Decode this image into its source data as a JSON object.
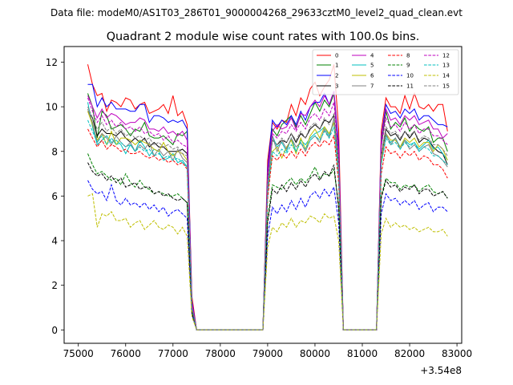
{
  "figure": {
    "suptitle": "Data file: modeM0/AS1T03_286T01_9000004268_29633cztM0_level2_quad_clean.evt",
    "offset_label": "+3.54e8"
  },
  "chart_data": {
    "type": "line",
    "title": "Quadrant 2 module wise count rates with 100.0s bins.",
    "xlabel": "",
    "ylabel": "",
    "xlim": [
      74700,
      83100
    ],
    "ylim": [
      -0.6,
      12.7
    ],
    "x_offset": 354000000,
    "x_ticks": [
      75000,
      76000,
      77000,
      78000,
      79000,
      80000,
      81000,
      82000,
      83000
    ],
    "x_tick_labels": [
      "75000",
      "76000",
      "77000",
      "78000",
      "79000",
      "80000",
      "81000",
      "82000",
      "83000"
    ],
    "y_ticks": [
      0,
      2,
      4,
      6,
      8,
      10,
      12
    ],
    "y_tick_labels": [
      "0",
      "2",
      "4",
      "6",
      "8",
      "10",
      "12"
    ],
    "grid": false,
    "legend_position": "top-right",
    "x": [
      75200,
      75300,
      75400,
      75500,
      75600,
      75700,
      75800,
      75900,
      76000,
      76100,
      76200,
      76300,
      76400,
      76500,
      76600,
      76700,
      76800,
      76900,
      77000,
      77100,
      77200,
      77300,
      77400,
      77500,
      78900,
      79000,
      79100,
      79200,
      79300,
      79400,
      79500,
      79600,
      79700,
      79800,
      79900,
      80000,
      80100,
      80200,
      80300,
      80400,
      80500,
      80600,
      81300,
      81400,
      81500,
      81600,
      81700,
      81800,
      81900,
      82000,
      82100,
      82200,
      82300,
      82400,
      82500,
      82600,
      82700,
      82800
    ],
    "series": [
      {
        "name": "0",
        "color": "#ff0000",
        "dashed": false,
        "values": [
          11.9,
          11.0,
          10.5,
          10.6,
          9.8,
          10.3,
          10.2,
          10.0,
          10.4,
          10.3,
          9.9,
          10.1,
          10.2,
          9.7,
          9.8,
          9.9,
          10.1,
          9.7,
          10.5,
          9.6,
          9.8,
          9.2,
          1.5,
          0,
          0,
          7.6,
          9.3,
          9.0,
          9.4,
          9.3,
          10.1,
          9.6,
          10.4,
          10.1,
          10.8,
          11.1,
          10.5,
          10.9,
          11.2,
          11.9,
          9.0,
          0,
          0,
          8.9,
          10.4,
          10.0,
          10.0,
          9.7,
          10.5,
          9.9,
          10.6,
          10.0,
          9.9,
          10.1,
          9.8,
          10.1,
          10.1,
          8.9
        ]
      },
      {
        "name": "1",
        "color": "#008000",
        "dashed": false,
        "values": [
          10.6,
          10.0,
          8.6,
          9.8,
          9.6,
          9.0,
          9.1,
          9.2,
          9.0,
          8.7,
          9.0,
          8.9,
          9.3,
          8.7,
          8.6,
          8.6,
          8.7,
          8.5,
          8.3,
          8.8,
          8.7,
          8.9,
          1.2,
          0,
          0,
          7.0,
          9.0,
          8.7,
          9.2,
          9.4,
          9.6,
          9.1,
          9.6,
          9.2,
          9.7,
          10.2,
          9.8,
          10.3,
          10.0,
          10.6,
          7.7,
          0,
          0,
          8.2,
          9.8,
          9.0,
          9.3,
          9.1,
          9.5,
          8.9,
          9.2,
          9.0,
          8.9,
          9.1,
          8.4,
          8.6,
          8.6,
          8.0
        ]
      },
      {
        "name": "2",
        "color": "#0000ff",
        "dashed": false,
        "values": [
          11.0,
          11.0,
          10.0,
          10.4,
          10.0,
          10.2,
          9.9,
          9.9,
          9.9,
          9.8,
          9.8,
          10.1,
          10.1,
          9.3,
          9.6,
          9.6,
          9.5,
          9.3,
          9.4,
          9.3,
          9.4,
          9.0,
          1.3,
          0,
          0,
          7.2,
          9.4,
          9.1,
          9.4,
          9.2,
          9.6,
          9.2,
          9.8,
          9.4,
          10.0,
          10.2,
          10.2,
          10.6,
          10.1,
          10.7,
          8.3,
          0,
          0,
          8.6,
          10.1,
          9.7,
          9.8,
          9.5,
          9.9,
          9.7,
          9.9,
          9.4,
          9.6,
          9.6,
          9.4,
          9.2,
          9.2,
          9.1
        ]
      },
      {
        "name": "3",
        "color": "#000000",
        "dashed": false,
        "values": [
          9.8,
          9.5,
          8.7,
          9.0,
          8.8,
          8.8,
          8.7,
          8.9,
          8.6,
          8.4,
          8.6,
          8.4,
          8.6,
          8.2,
          8.4,
          8.2,
          8.2,
          8.0,
          8.0,
          8.0,
          8.1,
          7.9,
          1.0,
          0,
          0,
          6.6,
          8.5,
          8.3,
          8.5,
          8.4,
          8.8,
          8.4,
          8.8,
          8.6,
          9.0,
          9.2,
          9.0,
          9.4,
          9.3,
          9.6,
          7.3,
          0,
          0,
          7.8,
          9.0,
          8.7,
          8.8,
          8.5,
          8.9,
          8.6,
          8.9,
          8.4,
          8.6,
          8.5,
          8.2,
          8.0,
          7.9,
          7.4
        ]
      },
      {
        "name": "4",
        "color": "#bf00bf",
        "dashed": false,
        "values": [
          10.5,
          10.0,
          9.5,
          9.9,
          9.5,
          9.7,
          9.6,
          9.4,
          9.2,
          9.3,
          9.3,
          9.5,
          9.4,
          9.0,
          9.0,
          8.9,
          9.1,
          8.8,
          8.9,
          8.7,
          8.9,
          8.5,
          1.2,
          0,
          0,
          7.0,
          8.9,
          9.2,
          9.0,
          9.1,
          9.5,
          9.0,
          9.7,
          9.6,
          10.0,
          10.3,
          10.0,
          10.5,
          10.1,
          10.7,
          8.0,
          0,
          0,
          8.5,
          9.9,
          9.4,
          9.5,
          9.2,
          9.6,
          9.4,
          9.6,
          9.2,
          9.3,
          9.4,
          9.0,
          9.0,
          8.6,
          8.8
        ]
      },
      {
        "name": "5",
        "color": "#00bfbf",
        "dashed": false,
        "values": [
          10.2,
          9.1,
          8.3,
          8.5,
          8.7,
          8.4,
          8.5,
          8.3,
          7.9,
          8.3,
          8.0,
          8.5,
          8.2,
          7.8,
          8.1,
          8.0,
          7.6,
          7.7,
          7.9,
          7.5,
          7.6,
          7.3,
          0.9,
          0,
          0,
          6.2,
          8.7,
          8.2,
          8.4,
          8.0,
          8.6,
          8.0,
          8.5,
          8.3,
          8.6,
          8.8,
          8.9,
          9.1,
          8.7,
          9.3,
          6.9,
          0,
          0,
          7.5,
          8.7,
          8.4,
          8.6,
          8.2,
          8.5,
          8.3,
          8.4,
          8.1,
          8.3,
          8.5,
          8.1,
          8.2,
          7.9,
          7.6
        ]
      },
      {
        "name": "6",
        "color": "#bfbf00",
        "dashed": false,
        "values": [
          9.8,
          9.2,
          8.5,
          8.8,
          8.3,
          8.9,
          8.3,
          8.6,
          8.6,
          8.5,
          8.3,
          8.5,
          8.4,
          8.3,
          8.1,
          8.0,
          8.4,
          8.0,
          7.8,
          8.0,
          7.9,
          7.6,
          1.0,
          0,
          0,
          6.1,
          8.0,
          8.2,
          7.7,
          8.2,
          8.5,
          7.9,
          8.6,
          8.1,
          8.7,
          9.0,
          8.6,
          9.1,
          8.8,
          9.3,
          6.9,
          0,
          0,
          7.6,
          8.8,
          8.5,
          8.5,
          8.2,
          8.6,
          8.4,
          8.6,
          8.2,
          8.4,
          8.4,
          8.0,
          8.3,
          8.1,
          7.6
        ]
      },
      {
        "name": "7",
        "color": "#808080",
        "dashed": false,
        "values": [
          9.9,
          9.3,
          8.4,
          8.8,
          8.6,
          8.3,
          8.7,
          8.4,
          8.2,
          8.4,
          8.0,
          8.3,
          8.1,
          8.4,
          7.8,
          8.1,
          7.8,
          8.0,
          7.6,
          8.1,
          7.7,
          7.5,
          1.0,
          0,
          0,
          6.2,
          8.7,
          8.0,
          8.5,
          8.1,
          8.6,
          8.2,
          8.4,
          8.0,
          8.5,
          8.7,
          8.4,
          9.0,
          8.6,
          9.5,
          7.1,
          0,
          0,
          7.4,
          8.8,
          8.3,
          8.6,
          8.1,
          8.5,
          8.1,
          8.3,
          8.0,
          8.2,
          8.3,
          7.9,
          7.8,
          7.6,
          7.3
        ]
      },
      {
        "name": "8",
        "color": "#ff0000",
        "dashed": true,
        "values": [
          9.0,
          8.6,
          8.2,
          8.5,
          8.1,
          8.3,
          8.2,
          8.0,
          8.1,
          7.9,
          7.9,
          8.0,
          7.8,
          7.7,
          7.8,
          7.6,
          7.7,
          7.5,
          7.6,
          7.4,
          7.5,
          7.2,
          0.9,
          0,
          0,
          5.9,
          7.8,
          7.6,
          7.9,
          7.7,
          8.0,
          7.7,
          8.1,
          7.8,
          8.2,
          8.4,
          8.2,
          8.5,
          8.3,
          8.7,
          6.6,
          0,
          0,
          7.0,
          8.2,
          7.9,
          8.0,
          7.7,
          8.0,
          7.8,
          8.0,
          7.6,
          7.8,
          7.7,
          7.4,
          7.4,
          7.2,
          6.8
        ]
      },
      {
        "name": "9",
        "color": "#008000",
        "dashed": true,
        "values": [
          7.9,
          7.4,
          7.0,
          7.1,
          6.9,
          6.7,
          6.8,
          6.5,
          7.0,
          6.6,
          6.4,
          6.7,
          6.4,
          6.3,
          6.1,
          6.2,
          6.1,
          6.0,
          6.0,
          6.1,
          5.9,
          5.7,
          0.8,
          0,
          0,
          5.0,
          6.5,
          6.4,
          6.3,
          6.6,
          6.8,
          6.5,
          6.8,
          6.6,
          6.9,
          7.3,
          6.8,
          7.0,
          6.9,
          7.2,
          5.6,
          0,
          0,
          6.0,
          6.8,
          6.6,
          6.6,
          6.3,
          6.5,
          6.4,
          6.5,
          6.2,
          6.4,
          6.5,
          6.2,
          6.1,
          6.2,
          5.9
        ]
      },
      {
        "name": "10",
        "color": "#0000ff",
        "dashed": true,
        "values": [
          6.7,
          6.3,
          6.1,
          6.2,
          5.8,
          6.5,
          5.8,
          5.6,
          5.9,
          5.6,
          5.7,
          5.5,
          5.7,
          5.4,
          5.6,
          5.3,
          5.5,
          5.1,
          5.3,
          5.4,
          5.2,
          5.0,
          0.7,
          0,
          0,
          4.2,
          5.5,
          5.2,
          5.6,
          5.3,
          5.8,
          5.4,
          5.9,
          5.5,
          6.0,
          6.2,
          5.9,
          6.3,
          6.0,
          6.4,
          4.8,
          0,
          0,
          5.2,
          6.1,
          5.8,
          5.9,
          5.6,
          5.8,
          5.6,
          5.8,
          5.4,
          5.6,
          5.7,
          5.3,
          5.5,
          5.5,
          5.3
        ]
      },
      {
        "name": "11",
        "color": "#000000",
        "dashed": true,
        "values": [
          7.5,
          7.1,
          6.9,
          7.0,
          6.7,
          6.9,
          6.6,
          6.8,
          6.4,
          6.5,
          6.6,
          6.3,
          6.4,
          6.4,
          6.1,
          6.2,
          6.0,
          6.1,
          5.9,
          5.8,
          5.9,
          5.7,
          0.8,
          0,
          0,
          4.8,
          6.3,
          6.1,
          6.5,
          6.2,
          6.6,
          6.3,
          6.7,
          6.4,
          6.8,
          7.0,
          6.7,
          7.1,
          6.9,
          7.4,
          5.4,
          0,
          0,
          5.9,
          6.7,
          6.4,
          6.5,
          6.2,
          6.4,
          6.3,
          6.5,
          6.1,
          6.3,
          6.3,
          6.0,
          6.1,
          6.2,
          5.9
        ]
      },
      {
        "name": "12",
        "color": "#bf00bf",
        "dashed": true,
        "values": [
          10.4,
          9.8,
          9.3,
          9.6,
          9.2,
          9.4,
          9.1,
          9.3,
          9.0,
          9.1,
          8.9,
          9.1,
          8.8,
          8.9,
          8.7,
          8.8,
          8.5,
          8.7,
          8.4,
          8.5,
          8.3,
          8.2,
          1.1,
          0,
          0,
          6.9,
          8.8,
          8.6,
          8.9,
          8.8,
          9.2,
          8.9,
          9.3,
          9.0,
          9.5,
          9.7,
          9.4,
          9.9,
          9.6,
          10.2,
          7.7,
          0,
          0,
          8.2,
          9.5,
          9.1,
          9.2,
          8.9,
          9.3,
          9.0,
          9.2,
          8.8,
          9.0,
          9.0,
          8.7,
          8.7,
          8.5,
          8.3
        ]
      },
      {
        "name": "13",
        "color": "#00bfbf",
        "dashed": true,
        "values": [
          9.4,
          8.9,
          8.4,
          8.7,
          8.3,
          8.6,
          8.3,
          8.4,
          8.2,
          8.3,
          8.0,
          8.2,
          8.0,
          8.1,
          7.8,
          7.9,
          7.7,
          7.8,
          7.6,
          7.7,
          7.5,
          7.3,
          1.0,
          0,
          0,
          6.2,
          8.0,
          7.8,
          8.1,
          7.9,
          8.3,
          8.0,
          8.4,
          8.1,
          8.5,
          8.7,
          8.5,
          8.9,
          8.6,
          9.1,
          6.9,
          0,
          0,
          7.4,
          8.6,
          8.3,
          8.4,
          8.1,
          8.4,
          8.2,
          8.4,
          8.0,
          8.2,
          8.1,
          7.8,
          7.8,
          7.6,
          7.4
        ]
      },
      {
        "name": "14",
        "color": "#bfbf00",
        "dashed": true,
        "values": [
          6.0,
          6.1,
          4.6,
          5.2,
          5.1,
          5.3,
          4.9,
          4.9,
          5.0,
          4.6,
          4.8,
          4.9,
          4.5,
          4.7,
          4.9,
          4.6,
          4.5,
          4.7,
          4.6,
          4.3,
          4.6,
          4.2,
          0.6,
          0,
          0,
          3.7,
          4.6,
          4.4,
          4.8,
          4.6,
          5.0,
          4.6,
          4.9,
          4.8,
          5.1,
          5.0,
          4.8,
          5.2,
          5.0,
          5.1,
          4.0,
          0,
          0,
          4.3,
          5.0,
          4.6,
          4.8,
          4.6,
          4.7,
          4.5,
          4.6,
          4.4,
          4.5,
          4.6,
          4.4,
          4.4,
          4.5,
          4.2
        ]
      },
      {
        "name": "15",
        "color": "#808080",
        "dashed": true,
        "values": [
          10.0,
          9.5,
          9.0,
          9.3,
          8.9,
          9.1,
          8.8,
          9.0,
          8.7,
          8.8,
          8.6,
          8.7,
          8.5,
          8.6,
          8.3,
          8.4,
          8.2,
          8.3,
          8.1,
          8.2,
          7.9,
          7.8,
          1.0,
          0,
          0,
          6.6,
          8.5,
          8.3,
          8.6,
          8.4,
          8.8,
          8.5,
          8.9,
          8.6,
          9.1,
          9.3,
          9.0,
          9.5,
          9.2,
          9.7,
          7.4,
          0,
          0,
          7.8,
          9.1,
          8.8,
          8.9,
          8.6,
          8.9,
          8.7,
          8.9,
          8.5,
          8.7,
          8.6,
          8.3,
          8.3,
          8.1,
          7.8
        ]
      }
    ]
  }
}
